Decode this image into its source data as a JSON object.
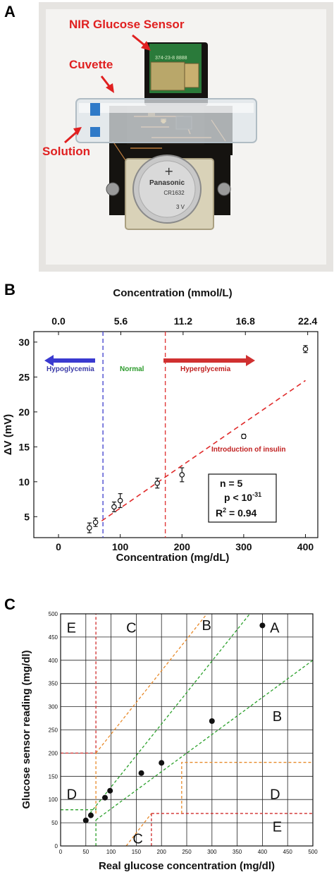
{
  "panels": {
    "a": {
      "letter": "A",
      "annotations": [
        "NIR Glucose Sensor",
        "Cuvette",
        "Solution"
      ],
      "battery_brand": "Panasonic",
      "battery_model": "CR1632",
      "battery_voltage": "3 V",
      "chip_label": "374-23-8 8888"
    },
    "b": {
      "letter": "B"
    },
    "c": {
      "letter": "C"
    }
  },
  "chart_data": [
    {
      "type": "scatter",
      "panel": "B",
      "xlabel": "Concentration (mg/dL)",
      "x2label": "Concentration (mmol/L)",
      "ylabel": "ΔV (mV)",
      "xlim": [
        -40,
        420
      ],
      "ylim": [
        2,
        31.5
      ],
      "xticks": [
        "0",
        "100",
        "200",
        "300",
        "400"
      ],
      "x2ticks": [
        "0.0",
        "5.6",
        "11.2",
        "16.8",
        "22.4"
      ],
      "yticks": [
        "5",
        "10",
        "15",
        "20",
        "25",
        "30"
      ],
      "points": [
        {
          "x": 50,
          "y": 3.4,
          "err": 0.7
        },
        {
          "x": 60,
          "y": 4.2,
          "err": 0.6
        },
        {
          "x": 90,
          "y": 6.4,
          "err": 0.7
        },
        {
          "x": 100,
          "y": 7.3,
          "err": 1.0
        },
        {
          "x": 160,
          "y": 9.8,
          "err": 0.7
        },
        {
          "x": 200,
          "y": 11.0,
          "err": 1.0
        },
        {
          "x": 300,
          "y": 16.5,
          "err": 0.3
        },
        {
          "x": 400,
          "y": 29.0,
          "err": 0.5
        }
      ],
      "fit_line": {
        "x": [
          70,
          400
        ],
        "y": [
          4.4,
          24.5
        ]
      },
      "vlines": [
        {
          "x": 72,
          "color": "#4a4ad0"
        },
        {
          "x": 173,
          "color": "#e03a3a"
        }
      ],
      "regions": [
        {
          "label": "Hypoglycemia",
          "color": "#3a3aa8"
        },
        {
          "label": "Normal",
          "color": "#2a9a2a"
        },
        {
          "label": "Hyperglycemia",
          "color": "#c02020"
        }
      ],
      "annotation": "Introduction of insulin",
      "stats": {
        "n": "n = 5",
        "p": "p < 10",
        "p_exp": "-31",
        "r2": "R",
        "r2_sup": "2",
        "r2_val": " = 0.94"
      }
    },
    {
      "type": "scatter",
      "panel": "C",
      "xlabel": "Real glucose concentration (mg/dl)",
      "ylabel": "Glucose sensor reading (mg/dl)",
      "xlim": [
        0,
        500
      ],
      "ylim": [
        0,
        500
      ],
      "xticks": [
        "0",
        "50",
        "100",
        "150",
        "200",
        "250",
        "300",
        "350",
        "400",
        "450",
        "500"
      ],
      "yticks": [
        "0",
        "50",
        "100",
        "150",
        "200",
        "250",
        "300",
        "350",
        "400",
        "450",
        "500"
      ],
      "points": [
        {
          "x": 50,
          "y": 55
        },
        {
          "x": 60,
          "y": 66
        },
        {
          "x": 88,
          "y": 104
        },
        {
          "x": 98,
          "y": 119
        },
        {
          "x": 160,
          "y": 157
        },
        {
          "x": 200,
          "y": 179
        },
        {
          "x": 300,
          "y": 269
        },
        {
          "x": 400,
          "y": 475
        }
      ],
      "zone_labels": [
        "E",
        "C",
        "B",
        "A",
        "B",
        "D",
        "D",
        "C",
        "E"
      ],
      "grid": true
    }
  ]
}
